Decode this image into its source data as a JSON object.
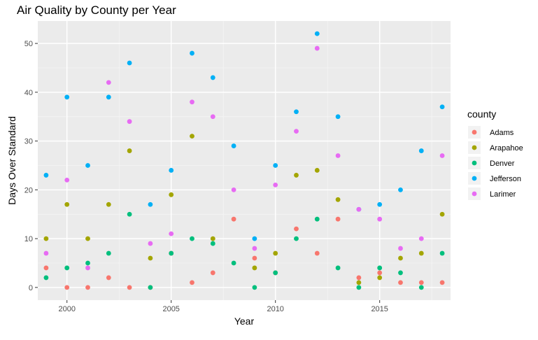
{
  "chart_data": {
    "type": "scatter",
    "title": "Air Quality by County per Year",
    "xlabel": "Year",
    "ylabel": "Days Over Standard",
    "xlim": [
      1998.6,
      2018.4
    ],
    "ylim": [
      -2.6,
      54.6
    ],
    "x_ticks": [
      2000,
      2005,
      2010,
      2015
    ],
    "y_ticks": [
      0,
      10,
      20,
      30,
      40,
      50
    ],
    "grid": true,
    "legend_title": "county",
    "legend_position": "right",
    "series": [
      {
        "name": "Adams",
        "color": "#F8766D",
        "points": [
          {
            "x": 1999,
            "y": 4
          },
          {
            "x": 2000,
            "y": 0
          },
          {
            "x": 2001,
            "y": 0
          },
          {
            "x": 2002,
            "y": 2
          },
          {
            "x": 2003,
            "y": 0
          },
          {
            "x": 2004,
            "y": 0
          },
          {
            "x": 2005,
            "y": 7
          },
          {
            "x": 2006,
            "y": 1
          },
          {
            "x": 2007,
            "y": 3
          },
          {
            "x": 2008,
            "y": 14
          },
          {
            "x": 2009,
            "y": 6
          },
          {
            "x": 2010,
            "y": 3
          },
          {
            "x": 2011,
            "y": 12
          },
          {
            "x": 2012,
            "y": 7
          },
          {
            "x": 2013,
            "y": 14
          },
          {
            "x": 2014,
            "y": 2
          },
          {
            "x": 2015,
            "y": 3
          },
          {
            "x": 2016,
            "y": 1
          },
          {
            "x": 2017,
            "y": 1
          },
          {
            "x": 2018,
            "y": 1
          }
        ]
      },
      {
        "name": "Arapahoe",
        "color": "#A3A500",
        "points": [
          {
            "x": 1999,
            "y": 10
          },
          {
            "x": 2000,
            "y": 17
          },
          {
            "x": 2001,
            "y": 10
          },
          {
            "x": 2002,
            "y": 17
          },
          {
            "x": 2003,
            "y": 28
          },
          {
            "x": 2004,
            "y": 6
          },
          {
            "x": 2005,
            "y": 19
          },
          {
            "x": 2006,
            "y": 31
          },
          {
            "x": 2007,
            "y": 10
          },
          {
            "x": 2009,
            "y": 4
          },
          {
            "x": 2010,
            "y": 7
          },
          {
            "x": 2011,
            "y": 23
          },
          {
            "x": 2012,
            "y": 24
          },
          {
            "x": 2013,
            "y": 18
          },
          {
            "x": 2014,
            "y": 1
          },
          {
            "x": 2015,
            "y": 2
          },
          {
            "x": 2016,
            "y": 6
          },
          {
            "x": 2017,
            "y": 7
          },
          {
            "x": 2018,
            "y": 15
          }
        ]
      },
      {
        "name": "Denver",
        "color": "#00BF7D",
        "points": [
          {
            "x": 1999,
            "y": 2
          },
          {
            "x": 2000,
            "y": 4
          },
          {
            "x": 2001,
            "y": 5
          },
          {
            "x": 2002,
            "y": 7
          },
          {
            "x": 2003,
            "y": 15
          },
          {
            "x": 2004,
            "y": 0
          },
          {
            "x": 2005,
            "y": 7
          },
          {
            "x": 2006,
            "y": 10
          },
          {
            "x": 2007,
            "y": 9
          },
          {
            "x": 2008,
            "y": 5
          },
          {
            "x": 2009,
            "y": 0
          },
          {
            "x": 2010,
            "y": 3
          },
          {
            "x": 2011,
            "y": 10
          },
          {
            "x": 2012,
            "y": 14
          },
          {
            "x": 2013,
            "y": 4
          },
          {
            "x": 2014,
            "y": 0
          },
          {
            "x": 2015,
            "y": 4
          },
          {
            "x": 2016,
            "y": 3
          },
          {
            "x": 2017,
            "y": 0
          },
          {
            "x": 2018,
            "y": 7
          }
        ]
      },
      {
        "name": "Jefferson",
        "color": "#00B0F6",
        "points": [
          {
            "x": 1999,
            "y": 23
          },
          {
            "x": 2000,
            "y": 39
          },
          {
            "x": 2001,
            "y": 25
          },
          {
            "x": 2002,
            "y": 39
          },
          {
            "x": 2003,
            "y": 46
          },
          {
            "x": 2004,
            "y": 17
          },
          {
            "x": 2005,
            "y": 24
          },
          {
            "x": 2006,
            "y": 48
          },
          {
            "x": 2007,
            "y": 43
          },
          {
            "x": 2008,
            "y": 29
          },
          {
            "x": 2009,
            "y": 10
          },
          {
            "x": 2010,
            "y": 25
          },
          {
            "x": 2011,
            "y": 36
          },
          {
            "x": 2012,
            "y": 52
          },
          {
            "x": 2013,
            "y": 35
          },
          {
            "x": 2014,
            "y": 16
          },
          {
            "x": 2015,
            "y": 17
          },
          {
            "x": 2016,
            "y": 20
          },
          {
            "x": 2017,
            "y": 28
          },
          {
            "x": 2018,
            "y": 37
          }
        ]
      },
      {
        "name": "Larimer",
        "color": "#E76BF3",
        "points": [
          {
            "x": 1999,
            "y": 7
          },
          {
            "x": 2000,
            "y": 22
          },
          {
            "x": 2001,
            "y": 4
          },
          {
            "x": 2002,
            "y": 42
          },
          {
            "x": 2003,
            "y": 34
          },
          {
            "x": 2004,
            "y": 9
          },
          {
            "x": 2005,
            "y": 11
          },
          {
            "x": 2006,
            "y": 38
          },
          {
            "x": 2007,
            "y": 35
          },
          {
            "x": 2008,
            "y": 20
          },
          {
            "x": 2009,
            "y": 8
          },
          {
            "x": 2010,
            "y": 21
          },
          {
            "x": 2011,
            "y": 32
          },
          {
            "x": 2012,
            "y": 49
          },
          {
            "x": 2013,
            "y": 27
          },
          {
            "x": 2014,
            "y": 16
          },
          {
            "x": 2015,
            "y": 14
          },
          {
            "x": 2016,
            "y": 8
          },
          {
            "x": 2017,
            "y": 10
          },
          {
            "x": 2018,
            "y": 27
          }
        ]
      }
    ]
  }
}
